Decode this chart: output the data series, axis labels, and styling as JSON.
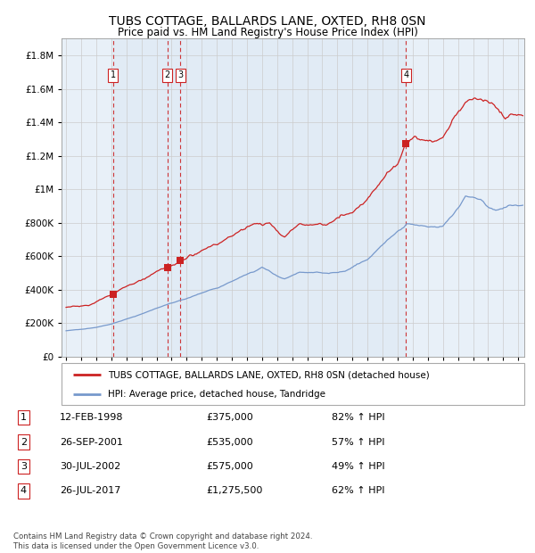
{
  "title": "TUBS COTTAGE, BALLARDS LANE, OXTED, RH8 0SN",
  "subtitle": "Price paid vs. HM Land Registry's House Price Index (HPI)",
  "title_fontsize": 10,
  "subtitle_fontsize": 8.5,
  "xlim": [
    1994.7,
    2025.4
  ],
  "ylim": [
    0,
    1900000
  ],
  "yticks": [
    0,
    200000,
    400000,
    600000,
    800000,
    1000000,
    1200000,
    1400000,
    1600000,
    1800000
  ],
  "ytick_labels": [
    "£0",
    "£200K",
    "£400K",
    "£600K",
    "£800K",
    "£1M",
    "£1.2M",
    "£1.4M",
    "£1.6M",
    "£1.8M"
  ],
  "xtick_vals": [
    1995,
    1996,
    1997,
    1998,
    1999,
    2000,
    2001,
    2002,
    2003,
    2004,
    2005,
    2006,
    2007,
    2008,
    2009,
    2010,
    2011,
    2012,
    2013,
    2014,
    2015,
    2016,
    2017,
    2018,
    2019,
    2020,
    2021,
    2022,
    2023,
    2024,
    2025
  ],
  "hpi_color": "#7799cc",
  "price_color": "#cc2222",
  "background_color": "#e8f0f8",
  "grid_color": "#cccccc",
  "shade_color": "#dde8f4",
  "legend_line1": "TUBS COTTAGE, BALLARDS LANE, OXTED, RH8 0SN (detached house)",
  "legend_line2": "HPI: Average price, detached house, Tandridge",
  "sales": [
    {
      "num": 1,
      "year": 1998.12,
      "price": 375000,
      "label": "12-FEB-1998",
      "price_str": "£375,000",
      "hpi_str": "82% ↑ HPI"
    },
    {
      "num": 2,
      "year": 2001.73,
      "price": 535000,
      "label": "26-SEP-2001",
      "price_str": "£535,000",
      "hpi_str": "57% ↑ HPI"
    },
    {
      "num": 3,
      "year": 2002.57,
      "price": 575000,
      "label": "30-JUL-2002",
      "price_str": "£575,000",
      "hpi_str": "49% ↑ HPI"
    },
    {
      "num": 4,
      "year": 2017.56,
      "price": 1275500,
      "label": "26-JUL-2017",
      "price_str": "£1,275,500",
      "hpi_str": "62% ↑ HPI"
    }
  ],
  "footer": "Contains HM Land Registry data © Crown copyright and database right 2024.\nThis data is licensed under the Open Government Licence v3.0."
}
